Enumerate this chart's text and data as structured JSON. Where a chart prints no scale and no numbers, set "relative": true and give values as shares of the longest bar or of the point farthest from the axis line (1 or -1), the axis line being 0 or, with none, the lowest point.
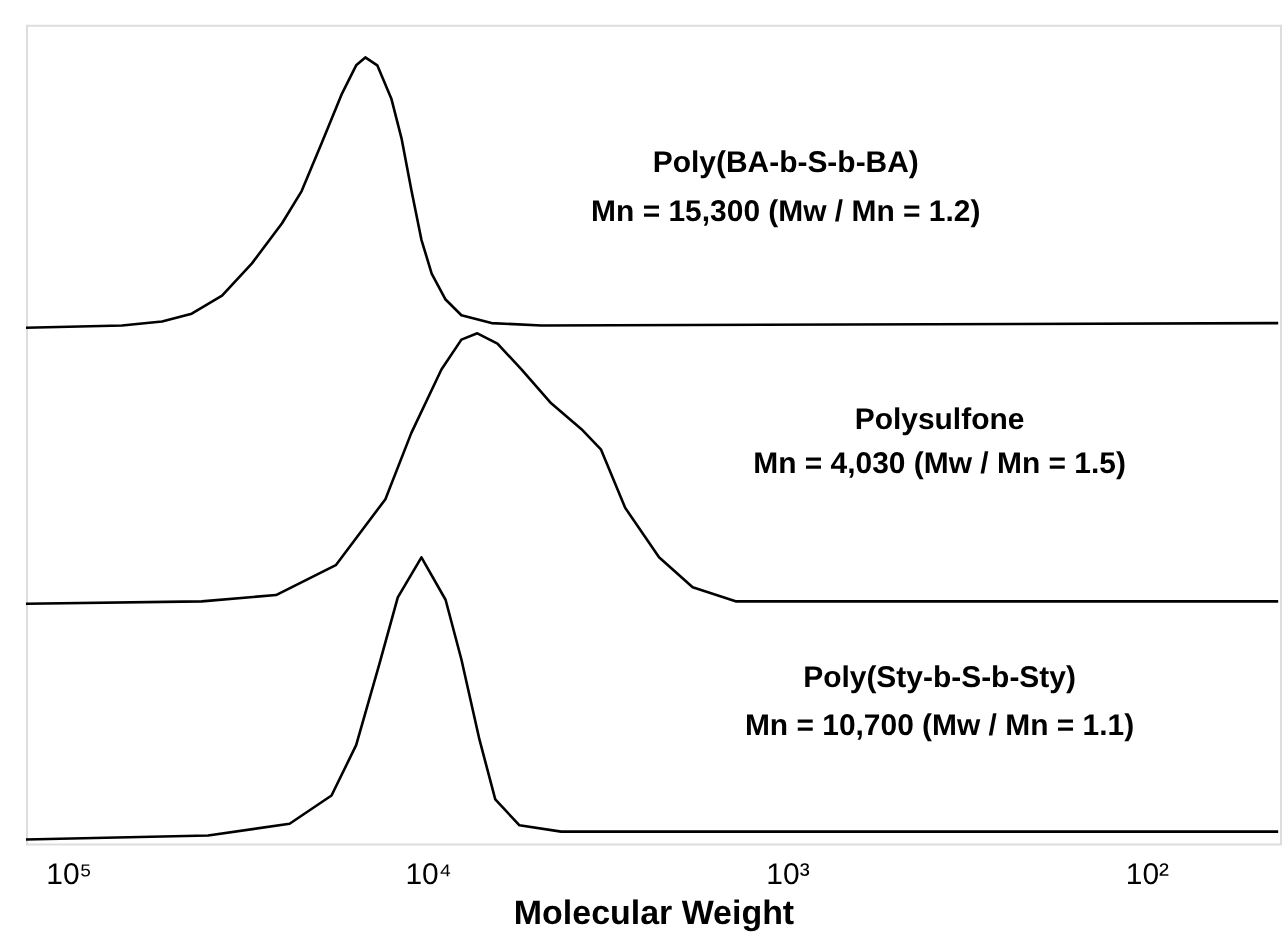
{
  "chart_data": {
    "type": "line",
    "relative": true,
    "xlabel": "Molecular Weight",
    "log": "x",
    "grid": false,
    "marker": "none",
    "line_style": "solid",
    "xlim": [
      131000,
      42.5
    ],
    "xticks": [
      {
        "value": 100000,
        "label": "10⁵"
      },
      {
        "value": 10000,
        "label": "10⁴"
      },
      {
        "value": 1000,
        "label": "10³"
      },
      {
        "value": 100,
        "label": "10²"
      }
    ],
    "annotations": [
      "Poly(BA-b-S-b-BA)\nMn = 15,300 (Mw / Mn = 1.2)",
      "Polysulfone\nMn = 4,030 (Mw / Mn = 1.5)",
      "Poly(Sty-b-S-b-Sty)\nMn = 10,700 (Mw / Mn = 1.1)"
    ],
    "series": [
      {
        "color": "#000000",
        "x": [
          131000,
          70800,
          54800,
          45300,
          37300,
          30800,
          25400,
          22400,
          19700,
          17300,
          15800,
          14900,
          13800,
          12600,
          11800,
          11100,
          10400,
          9740,
          8910,
          8050,
          6640,
          4820,
          43
        ],
        "values": [
          0.656,
          0.659,
          0.664,
          0.674,
          0.697,
          0.738,
          0.789,
          0.83,
          0.891,
          0.954,
          0.99,
          1.0,
          0.99,
          0.947,
          0.896,
          0.832,
          0.768,
          0.725,
          0.692,
          0.672,
          0.662,
          0.659,
          0.662
        ]
      },
      {
        "color": "#000000",
        "x": [
          131000,
          42500,
          26400,
          18000,
          13100,
          11100,
          9150,
          8050,
          7270,
          6390,
          5480,
          4530,
          3730,
          3290,
          2820,
          2270,
          1830,
          1390,
          43
        ],
        "values": [
          0.305,
          0.308,
          0.316,
          0.354,
          0.438,
          0.522,
          0.603,
          0.641,
          0.649,
          0.636,
          0.603,
          0.56,
          0.527,
          0.501,
          0.427,
          0.364,
          0.326,
          0.308,
          0.308
        ]
      },
      {
        "color": "#000000",
        "x": [
          131000,
          40800,
          24200,
          18500,
          15800,
          13600,
          12100,
          10400,
          8910,
          8050,
          7170,
          6480,
          5550,
          4250,
          43
        ],
        "values": [
          0.005,
          0.01,
          0.025,
          0.061,
          0.125,
          0.229,
          0.313,
          0.364,
          0.31,
          0.234,
          0.132,
          0.056,
          0.023,
          0.015,
          0.015
        ]
      }
    ]
  }
}
